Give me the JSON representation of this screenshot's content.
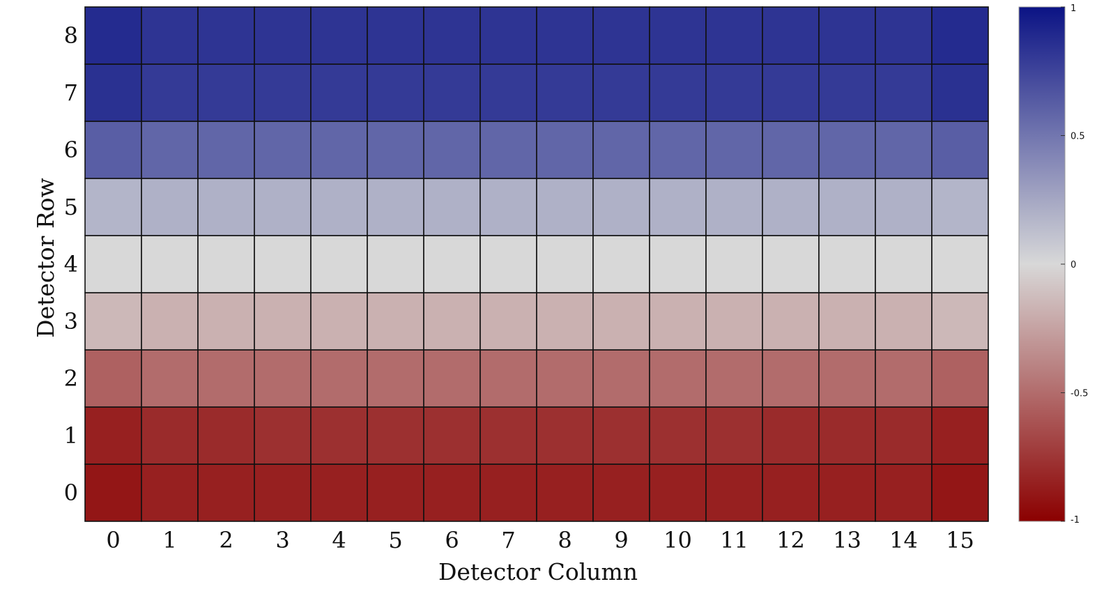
{
  "chart_data": {
    "type": "heatmap",
    "xlabel": "Detector Column",
    "ylabel": "Detector Row",
    "x_categories": [
      "0",
      "1",
      "2",
      "3",
      "4",
      "5",
      "6",
      "7",
      "8",
      "9",
      "10",
      "11",
      "12",
      "13",
      "14",
      "15"
    ],
    "y_categories": [
      "0",
      "1",
      "2",
      "3",
      "4",
      "5",
      "6",
      "7",
      "8"
    ],
    "values": [
      [
        -0.9,
        -0.85,
        -0.85,
        -0.85,
        -0.85,
        -0.85,
        -0.85,
        -0.85,
        -0.85,
        -0.85,
        -0.85,
        -0.85,
        -0.85,
        -0.85,
        -0.85,
        -0.9
      ],
      [
        -0.85,
        -0.8,
        -0.8,
        -0.78,
        -0.78,
        -0.78,
        -0.78,
        -0.78,
        -0.78,
        -0.78,
        -0.78,
        -0.78,
        -0.8,
        -0.8,
        -0.8,
        -0.85
      ],
      [
        -0.55,
        -0.5,
        -0.5,
        -0.5,
        -0.5,
        -0.5,
        -0.5,
        -0.5,
        -0.5,
        -0.5,
        -0.5,
        -0.5,
        -0.5,
        -0.5,
        -0.5,
        -0.55
      ],
      [
        -0.15,
        -0.18,
        -0.18,
        -0.18,
        -0.18,
        -0.18,
        -0.18,
        -0.18,
        -0.18,
        -0.18,
        -0.18,
        -0.18,
        -0.18,
        -0.18,
        -0.18,
        -0.15
      ],
      [
        0.0,
        0.0,
        0.0,
        0.0,
        0.0,
        0.0,
        0.0,
        0.0,
        0.0,
        0.0,
        0.0,
        0.0,
        0.0,
        0.0,
        0.0,
        0.0
      ],
      [
        0.18,
        0.2,
        0.2,
        0.2,
        0.2,
        0.2,
        0.2,
        0.2,
        0.2,
        0.2,
        0.2,
        0.2,
        0.2,
        0.2,
        0.2,
        0.18
      ],
      [
        0.62,
        0.58,
        0.58,
        0.58,
        0.58,
        0.58,
        0.58,
        0.58,
        0.58,
        0.58,
        0.58,
        0.58,
        0.58,
        0.58,
        0.58,
        0.62
      ],
      [
        0.85,
        0.8,
        0.8,
        0.8,
        0.8,
        0.8,
        0.8,
        0.8,
        0.8,
        0.8,
        0.8,
        0.8,
        0.8,
        0.8,
        0.8,
        0.85
      ],
      [
        0.88,
        0.83,
        0.83,
        0.83,
        0.83,
        0.83,
        0.83,
        0.83,
        0.83,
        0.83,
        0.83,
        0.83,
        0.83,
        0.83,
        0.83,
        0.88
      ]
    ],
    "colorbar": {
      "range": [
        -1,
        1
      ],
      "ticks": [
        "1",
        "0.5",
        "0",
        "-0.5",
        "-1"
      ],
      "tick_values": [
        1,
        0.5,
        0,
        -0.5,
        -1
      ],
      "colormap": [
        "#8b0000",
        "#d8d8d8",
        "#0b1385"
      ]
    },
    "grid": true
  }
}
